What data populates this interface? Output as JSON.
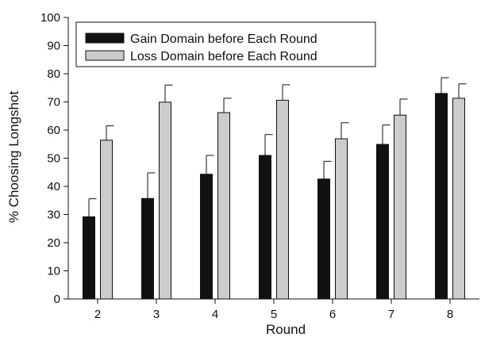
{
  "chart_data": {
    "type": "bar",
    "title": "",
    "xlabel": "Round",
    "ylabel": "% Choosing Longshot",
    "ylim": [
      0,
      100
    ],
    "yticks": [
      0,
      10,
      20,
      30,
      40,
      50,
      60,
      70,
      80,
      90,
      100
    ],
    "grid": false,
    "legend_position": "top-left",
    "categories": [
      "2",
      "3",
      "4",
      "5",
      "6",
      "7",
      "8"
    ],
    "series": [
      {
        "name": "Gain Domain before Each Round",
        "color": "#111111",
        "values": [
          29.2,
          35.7,
          44.3,
          51.0,
          42.6,
          54.9,
          73.0
        ],
        "error_upper": [
          35.6,
          44.8,
          51.0,
          58.4,
          48.9,
          61.8,
          78.6
        ]
      },
      {
        "name": "Loss Domain before Each Round",
        "color": "#cccccc",
        "values": [
          56.4,
          69.9,
          66.2,
          70.6,
          56.9,
          65.3,
          71.3
        ],
        "error_upper": [
          61.5,
          76.0,
          71.3,
          76.1,
          62.6,
          71.0,
          76.4
        ]
      }
    ]
  }
}
